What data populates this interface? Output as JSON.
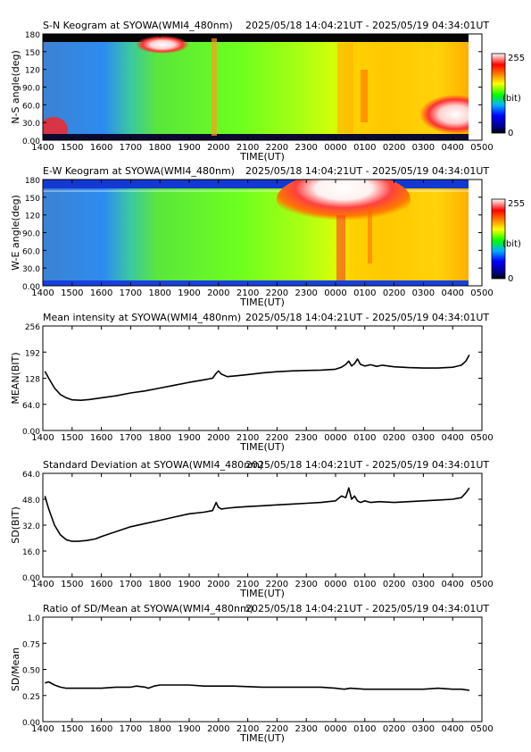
{
  "charts": [
    {
      "type": "heatmap",
      "title": "S-N Keogram at SYOWA(WMI4_480nm)",
      "range": "2025/05/18 14:04:21UT - 2025/05/19 04:34:01UT",
      "xlabel": "TIME(UT)",
      "ylabel": "N-S angle(deg)",
      "x_ticks": [
        "1400",
        "1500",
        "1600",
        "1700",
        "1800",
        "1900",
        "2000",
        "2100",
        "2200",
        "2300",
        "0000",
        "0100",
        "0200",
        "0300",
        "0400",
        "0500"
      ],
      "y_ticks": [
        "0.00",
        "30.0",
        "60.0",
        "90.0",
        "120",
        "150",
        "180"
      ],
      "colorbar": {
        "max": "255",
        "unit": "(bit)",
        "min": "0"
      }
    },
    {
      "type": "heatmap",
      "title": "E-W Keogram at SYOWA(WMI4_480nm)",
      "range": "2025/05/18 14:04:21UT - 2025/05/19 04:34:01UT",
      "xlabel": "TIME(UT)",
      "ylabel": "W-E angle(deg)",
      "x_ticks": [
        "1400",
        "1500",
        "1600",
        "1700",
        "1800",
        "1900",
        "2000",
        "2100",
        "2200",
        "2300",
        "0000",
        "0100",
        "0200",
        "0300",
        "0400",
        "0500"
      ],
      "y_ticks": [
        "0.00",
        "30.0",
        "60.0",
        "90.0",
        "120",
        "150",
        "180"
      ],
      "colorbar": {
        "max": "255",
        "unit": "(bit)",
        "min": "0"
      }
    },
    {
      "type": "line",
      "title": "Mean intensity at SYOWA(WMI4_480nm)",
      "range": "2025/05/18 14:04:21UT - 2025/05/19 04:34:01UT",
      "xlabel": "TIME(UT)",
      "ylabel": "MEAN(BIT)",
      "x_ticks": [
        "1400",
        "1500",
        "1600",
        "1700",
        "1800",
        "1900",
        "2000",
        "2100",
        "2200",
        "2300",
        "0000",
        "0100",
        "0200",
        "0300",
        "0400",
        "0500"
      ],
      "y_ticks": [
        "0.00",
        "64.0",
        "128",
        "192",
        "256"
      ],
      "ylim": [
        0,
        256
      ],
      "xlim_hours": [
        14,
        29
      ]
    },
    {
      "type": "line",
      "title": "Standard Deviation at SYOWA(WMI4_480nm)",
      "range": "2025/05/18 14:04:21UT - 2025/05/19 04:34:01UT",
      "xlabel": "TIME(UT)",
      "ylabel": "SD(BIT)",
      "x_ticks": [
        "1400",
        "1500",
        "1600",
        "1700",
        "1800",
        "1900",
        "2000",
        "2100",
        "2200",
        "2300",
        "0000",
        "0100",
        "0200",
        "0300",
        "0400",
        "0500"
      ],
      "y_ticks": [
        "0.00",
        "16.0",
        "32.0",
        "48.0",
        "64.0"
      ],
      "ylim": [
        0,
        64
      ],
      "xlim_hours": [
        14,
        29
      ]
    },
    {
      "type": "line",
      "title": "Ratio of SD/Mean at SYOWA(WMI4_480nm)",
      "range": "2025/05/18 14:04:21UT - 2025/05/19 04:34:01UT",
      "xlabel": "TIME(UT)",
      "ylabel": "SD/Mean",
      "x_ticks": [
        "1400",
        "1500",
        "1600",
        "1700",
        "1800",
        "1900",
        "2000",
        "2100",
        "2200",
        "2300",
        "0000",
        "0100",
        "0200",
        "0300",
        "0400",
        "0500"
      ],
      "y_ticks": [
        "0.00",
        "0.25",
        "0.50",
        "0.75",
        "1.0"
      ],
      "ylim": [
        0,
        1.0
      ],
      "xlim_hours": [
        14,
        29
      ]
    }
  ],
  "chart_data": [
    {
      "type": "heatmap",
      "title": "S-N Keogram at SYOWA(WMI4_480nm)",
      "xlabel": "TIME(UT)",
      "ylabel": "N-S angle(deg)",
      "ylim": [
        0,
        180
      ]
    },
    {
      "type": "heatmap",
      "title": "E-W Keogram at SYOWA(WMI4_480nm)",
      "xlabel": "TIME(UT)",
      "ylabel": "W-E angle(deg)",
      "ylim": [
        0,
        180
      ]
    },
    {
      "type": "line",
      "title": "Mean intensity at SYOWA(WMI4_480nm)",
      "ylim": [
        0,
        256
      ],
      "x": [
        14.07,
        14.2,
        14.4,
        14.6,
        14.8,
        15.0,
        15.3,
        15.6,
        16.0,
        16.5,
        17.0,
        17.5,
        18.0,
        18.5,
        19.0,
        19.5,
        19.8,
        19.92,
        20.0,
        20.1,
        20.3,
        20.6,
        21.0,
        21.5,
        22.0,
        22.5,
        23.0,
        23.5,
        24.0,
        24.2,
        24.35,
        24.45,
        24.55,
        24.65,
        24.75,
        24.85,
        25.0,
        25.2,
        25.4,
        25.6,
        26.0,
        26.5,
        27.0,
        27.5,
        28.0,
        28.3,
        28.45,
        28.57
      ],
      "values": [
        145,
        128,
        104,
        88,
        80,
        75,
        74,
        76,
        80,
        85,
        92,
        97,
        104,
        111,
        118,
        124,
        128,
        140,
        146,
        138,
        132,
        134,
        137,
        141,
        144,
        146,
        147,
        148,
        150,
        155,
        162,
        170,
        158,
        164,
        175,
        162,
        158,
        161,
        157,
        160,
        156,
        154,
        153,
        153,
        155,
        160,
        170,
        185
      ]
    },
    {
      "type": "line",
      "title": "Standard Deviation at SYOWA(WMI4_480nm)",
      "ylim": [
        0,
        64
      ],
      "x": [
        14.07,
        14.2,
        14.4,
        14.6,
        14.8,
        15.0,
        15.2,
        15.5,
        15.8,
        16.0,
        16.5,
        17.0,
        17.5,
        18.0,
        18.5,
        19.0,
        19.5,
        19.8,
        19.92,
        20.0,
        20.1,
        20.3,
        20.6,
        21.0,
        21.5,
        22.0,
        22.5,
        23.0,
        23.5,
        24.0,
        24.2,
        24.35,
        24.45,
        24.55,
        24.65,
        24.75,
        24.85,
        25.0,
        25.2,
        25.5,
        26.0,
        26.5,
        27.0,
        27.5,
        28.0,
        28.3,
        28.45,
        28.57
      ],
      "values": [
        50,
        42,
        32,
        26,
        23,
        22,
        22,
        22.5,
        23.5,
        25,
        28,
        31,
        33,
        35,
        37,
        39,
        40,
        41,
        46,
        43,
        42,
        42.5,
        43,
        43.5,
        44,
        44.5,
        45,
        45.5,
        46,
        47,
        50,
        49,
        55,
        48,
        50,
        47,
        46,
        47,
        46,
        46.5,
        46,
        46.5,
        47,
        47.5,
        48,
        49,
        52,
        55
      ]
    },
    {
      "type": "line",
      "title": "Ratio of SD/Mean at SYOWA(WMI4_480nm)",
      "ylim": [
        0,
        1.0
      ],
      "x": [
        14.07,
        14.2,
        14.4,
        14.6,
        14.8,
        15.0,
        15.5,
        16.0,
        16.5,
        17.0,
        17.2,
        17.5,
        17.6,
        17.8,
        18.0,
        18.5,
        19.0,
        19.5,
        20.0,
        20.5,
        21.0,
        21.5,
        22.0,
        22.5,
        23.0,
        23.5,
        24.0,
        24.3,
        24.5,
        25.0,
        25.5,
        26.0,
        26.5,
        27.0,
        27.5,
        28.0,
        28.3,
        28.57
      ],
      "values": [
        0.37,
        0.38,
        0.35,
        0.33,
        0.32,
        0.32,
        0.32,
        0.32,
        0.33,
        0.33,
        0.34,
        0.33,
        0.32,
        0.34,
        0.35,
        0.35,
        0.35,
        0.34,
        0.34,
        0.34,
        0.335,
        0.33,
        0.33,
        0.33,
        0.33,
        0.33,
        0.32,
        0.31,
        0.32,
        0.31,
        0.31,
        0.31,
        0.31,
        0.31,
        0.32,
        0.31,
        0.31,
        0.3
      ]
    }
  ]
}
